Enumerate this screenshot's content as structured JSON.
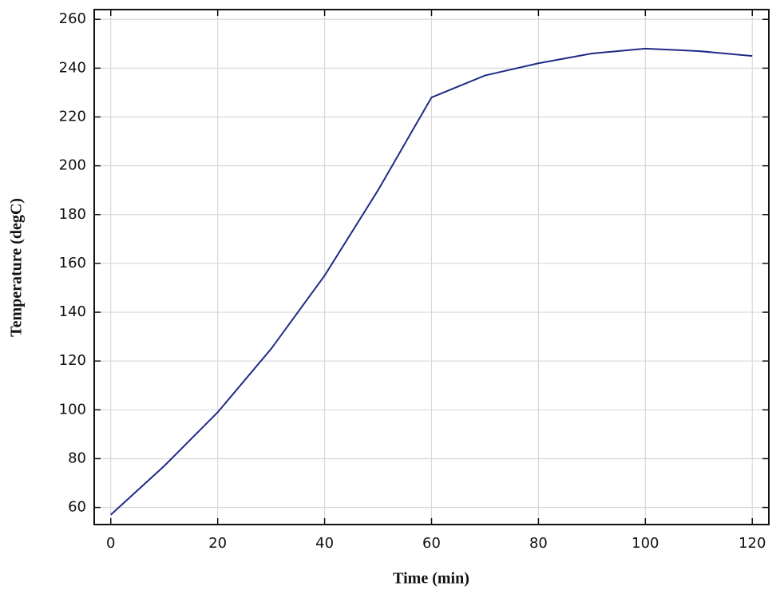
{
  "chart_data": {
    "type": "line",
    "x_label": "Time (min)",
    "y_label": "Temperature (degC)",
    "x": [
      0,
      10,
      20,
      30,
      40,
      50,
      60,
      70,
      80,
      90,
      100,
      110,
      120
    ],
    "series": [
      {
        "color": "#1f2a86",
        "values": [
          57,
          77,
          99,
          125,
          155,
          190,
          228,
          237,
          242,
          246,
          248,
          247,
          245
        ]
      }
    ],
    "xlim": [
      -3.1,
      123.1
    ],
    "xticks": [
      0,
      20,
      40,
      60,
      80,
      100,
      120
    ],
    "ylim": [
      53,
      264
    ],
    "yticks": [
      60,
      80,
      100,
      120,
      140,
      160,
      180,
      200,
      220,
      240,
      260
    ],
    "grid": true
  }
}
